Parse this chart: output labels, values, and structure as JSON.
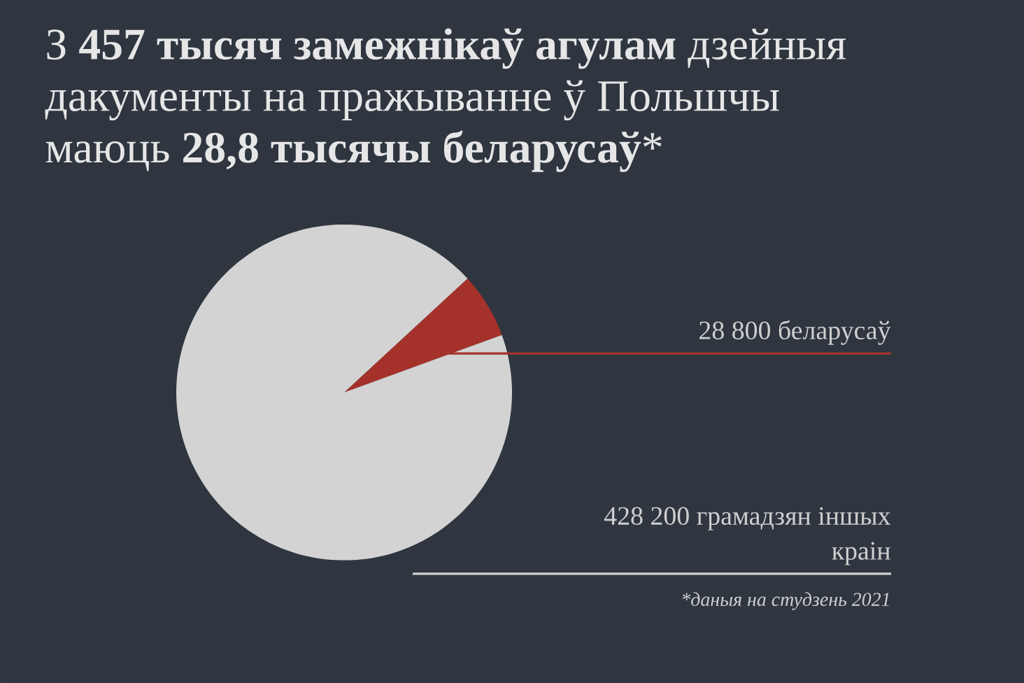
{
  "chart_data": {
    "type": "pie",
    "title": "З **457 тысяч замежнікаў агулам** дзейныя дакументы на пражыванне ў Польшчы маюць **28,8 тысячы беларусаў***",
    "categories": [
      "28 800 беларусаў",
      "428 200 грамадзян іншых краін"
    ],
    "values": [
      28800,
      428200
    ],
    "colors": [
      "#a5322a",
      "#d3d3d3"
    ],
    "annotations": [
      "*даныя на студзень 2021"
    ]
  }
}
